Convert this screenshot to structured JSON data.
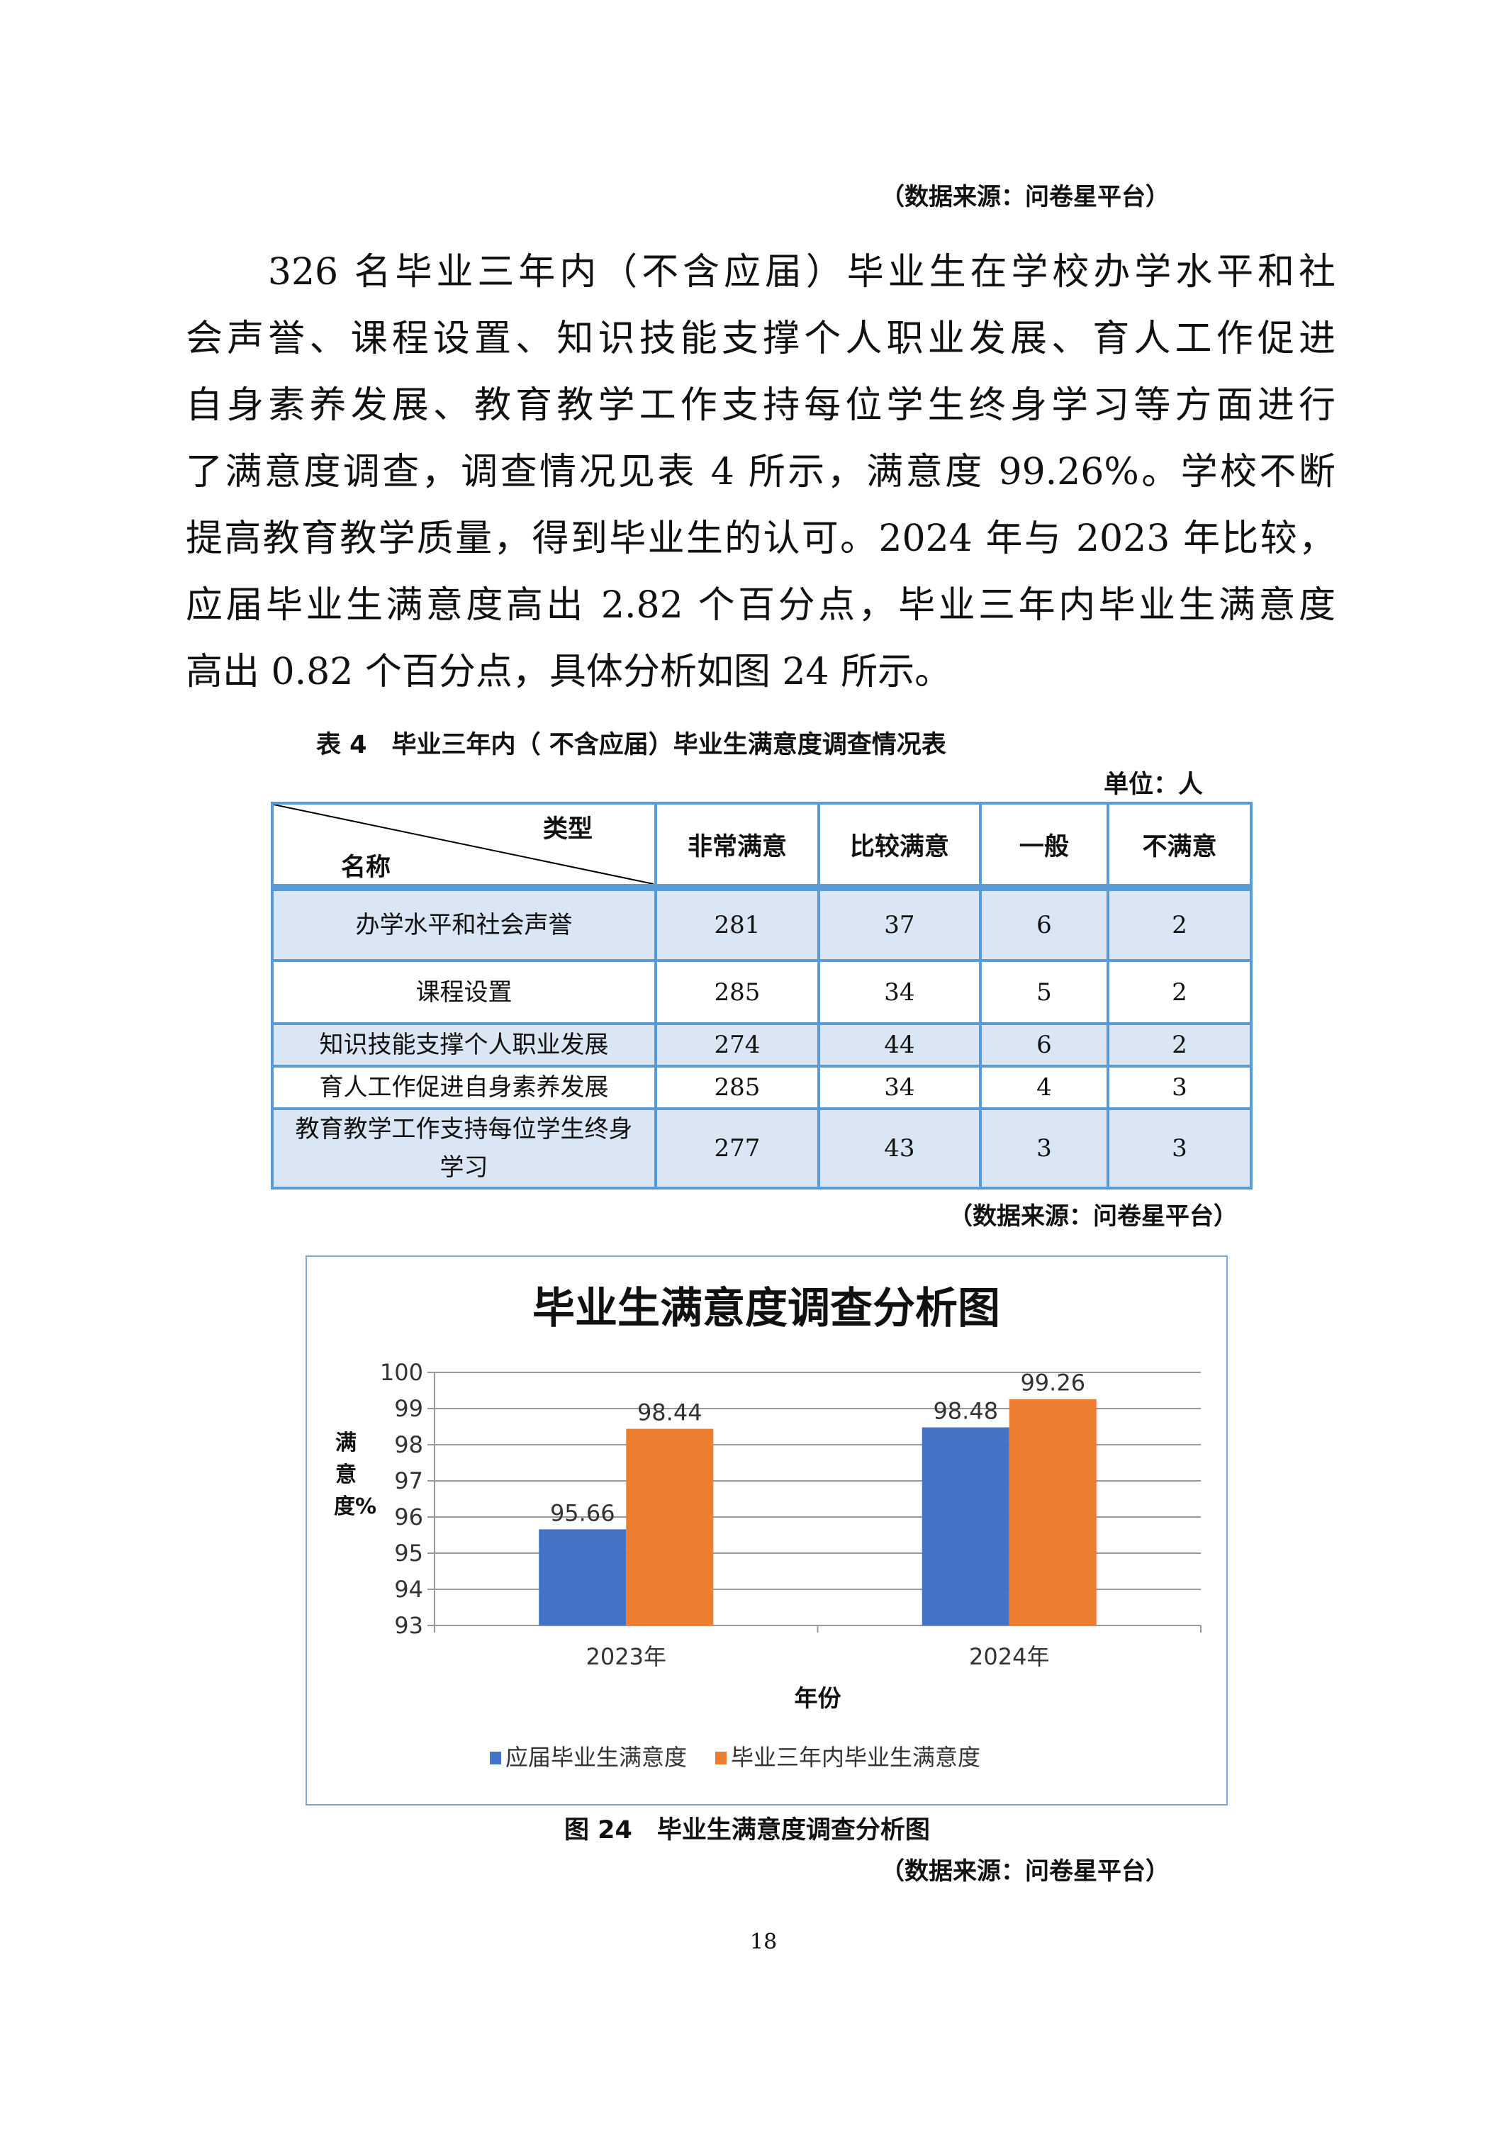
{
  "source_note": "（数据来源：问卷星平台）",
  "paragraph": [
    "　　326 名毕业三年内（不含应届）毕业生在学校办学水平和社",
    "会声誉、课程设置、知识技能支撑个人职业发展、育人工作促进",
    "自身素养发展、教育教学工作支持每位学生终身学习等方面进行",
    "了满意度调查，调查情况见表 4 所示，满意度 99.26%。学校不断",
    "提高教育教学质量，得到毕业生的认可。2024 年与 2023 年比较，",
    "应届毕业生满意度高出 2.82 个百分点，毕业三年内毕业生满意度",
    "高出 0.82 个百分点，具体分析如图 24 所示。"
  ],
  "table": {
    "caption": "表 4　毕业三年内（ 不含应届）毕业生满意度调查情况表",
    "unit": "单位：人",
    "corner_top": "类型",
    "corner_bottom": "名称",
    "headers": [
      "非常满意",
      "比较满意",
      "一般",
      "不满意"
    ],
    "rows": [
      {
        "name": "办学水平和社会声誉",
        "values": [
          "281",
          "37",
          "6",
          "2"
        ]
      },
      {
        "name": "课程设置",
        "values": [
          "285",
          "34",
          "5",
          "2"
        ]
      },
      {
        "name": "知识技能支撑个人职业发展",
        "values": [
          "274",
          "44",
          "6",
          "2"
        ]
      },
      {
        "name": "育人工作促进自身素养发展",
        "values": [
          "285",
          "34",
          "4",
          "3"
        ]
      },
      {
        "name": "教育教学工作支持每位学生终身学习",
        "values": [
          "277",
          "43",
          "3",
          "3"
        ]
      }
    ]
  },
  "chart_data": {
    "type": "bar",
    "title": "毕业生满意度调查分析图",
    "xlabel": "年份",
    "ylabel": "满意度%",
    "categories": [
      "2023年",
      "2024年"
    ],
    "series": [
      {
        "name": "应届毕业生满意度",
        "values": [
          95.66,
          98.48
        ],
        "color": "#4472c4"
      },
      {
        "name": "毕业三年内毕业生满意度",
        "values": [
          98.44,
          99.26
        ],
        "color": "#ed7d31"
      }
    ],
    "ylim": [
      93,
      100
    ],
    "yticks": [
      "93",
      "94",
      "95",
      "96",
      "97",
      "98",
      "99",
      "100"
    ],
    "grid": true,
    "legend": "bottom"
  },
  "figure_caption": "图 24　毕业生满意度调查分析图",
  "page_number": "18"
}
